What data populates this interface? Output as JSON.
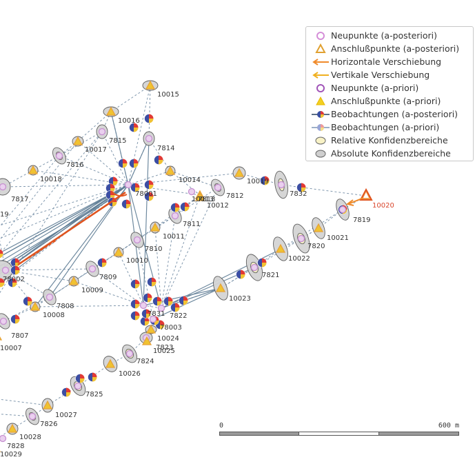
{
  "legend": {
    "items": [
      {
        "symbol": "circle-open-pink",
        "label": "Neupunkte (a-posteriori)"
      },
      {
        "symbol": "triangle-open-orange",
        "label": "Anschlußpunkte (a-posteriori)"
      },
      {
        "symbol": "arrow-orange",
        "label": "Horizontale Verschiebung"
      },
      {
        "symbol": "arrow-yellow",
        "label": "Vertikale Verschiebung"
      },
      {
        "symbol": "circle-open-purple",
        "label": "Neupunkte (a-priori)"
      },
      {
        "symbol": "triangle-filled-yellow",
        "label": "Anschlußpunkte (a-priori)"
      },
      {
        "symbol": "line-dark-multicolor",
        "label": "Beobachtungen (a-posteriori)"
      },
      {
        "symbol": "line-light-multicolor",
        "label": "Beobachtungen (a-priori)"
      },
      {
        "symbol": "ellipse-cream",
        "label": "Relative Konfidenzbereiche"
      },
      {
        "symbol": "ellipse-grey",
        "label": "Absolute Konfidenzbereiche"
      }
    ]
  },
  "scalebar": {
    "start_label": "0",
    "end_label": "600 m"
  },
  "points": [
    {
      "id": "10015",
      "type": "control"
    },
    {
      "id": "10016",
      "type": "control"
    },
    {
      "id": "7815",
      "type": "new"
    },
    {
      "id": "7814",
      "type": "new"
    },
    {
      "id": "10017",
      "type": "control"
    },
    {
      "id": "7816",
      "type": "new"
    },
    {
      "id": "10018",
      "type": "control"
    },
    {
      "id": "10014",
      "type": "control"
    },
    {
      "id": "78001",
      "type": "new"
    },
    {
      "id": "10013",
      "type": "control"
    },
    {
      "id": "7813",
      "type": "new"
    },
    {
      "id": "7812",
      "type": "new"
    },
    {
      "id": "10012",
      "type": "control"
    },
    {
      "id": "7817",
      "type": "new"
    },
    {
      "id": "19",
      "type": "new"
    },
    {
      "id": "7811",
      "type": "new"
    },
    {
      "id": "10011",
      "type": "control"
    },
    {
      "id": "7810",
      "type": "new"
    },
    {
      "id": "10010",
      "type": "control"
    },
    {
      "id": "7809",
      "type": "new"
    },
    {
      "id": "10009",
      "type": "control"
    },
    {
      "id": "78002",
      "type": "new"
    },
    {
      "id": "7808",
      "type": "new"
    },
    {
      "id": "10008",
      "type": "control"
    },
    {
      "id": "7807",
      "type": "new"
    },
    {
      "id": "10007",
      "type": "control"
    },
    {
      "id": "7832",
      "type": "new"
    },
    {
      "id": "10020",
      "type": "control"
    },
    {
      "id": "7819",
      "type": "new"
    },
    {
      "id": "10021",
      "type": "control"
    },
    {
      "id": "7820",
      "type": "new"
    },
    {
      "id": "10022",
      "type": "control"
    },
    {
      "id": "7821",
      "type": "new"
    },
    {
      "id": "10023",
      "type": "control"
    },
    {
      "id": "7831",
      "type": "new"
    },
    {
      "id": "7822",
      "type": "new"
    },
    {
      "id": "78003",
      "type": "new"
    },
    {
      "id": "10024",
      "type": "control"
    },
    {
      "id": "7823",
      "type": "new"
    },
    {
      "id": "10025",
      "type": "control"
    },
    {
      "id": "7824",
      "type": "new"
    },
    {
      "id": "10026",
      "type": "control"
    },
    {
      "id": "7825",
      "type": "new"
    },
    {
      "id": "10027",
      "type": "control"
    },
    {
      "id": "7826",
      "type": "new"
    },
    {
      "id": "10028",
      "type": "control"
    },
    {
      "id": "7828",
      "type": "new"
    },
    {
      "id": "10029",
      "type": "control"
    },
    {
      "id": "10019",
      "type": "control"
    }
  ],
  "colors": {
    "observation_dark": "#5f7d95",
    "observation_dashed": "#6c87a0",
    "shift_arrow": "#e0541f",
    "control_point": "#e6a23a",
    "new_point": "#c68fd0",
    "ellipse_abs": "#d4d4d4",
    "ellipse_rel": "#f6f0c4"
  }
}
